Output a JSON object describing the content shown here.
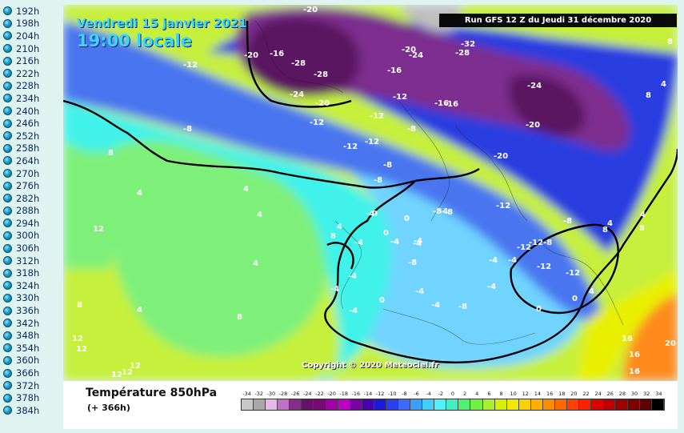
{
  "steps": [
    "192h",
    "198h",
    "204h",
    "210h",
    "216h",
    "222h",
    "228h",
    "234h",
    "240h",
    "246h",
    "252h",
    "258h",
    "264h",
    "270h",
    "276h",
    "282h",
    "288h",
    "294h",
    "300h",
    "306h",
    "312h",
    "318h",
    "324h",
    "330h",
    "336h",
    "342h",
    "348h",
    "354h",
    "360h",
    "366h",
    "372h",
    "378h",
    "384h"
  ],
  "map": {
    "date": "Vendredi 15 janvier 2021",
    "time": "19:00 locale",
    "run": "Run GFS 12 Z du Jeudi 31 décembre 2020",
    "copyright": "Copyright © 2020 Meteociel.fr",
    "colors": {
      "very_cold": "#5a1260",
      "cold": "#7d2d8f",
      "blue": "#2b3de0",
      "mid_blue": "#4876f0",
      "light_blue": "#6fd4ff",
      "cyan": "#3ff2ea",
      "green": "#7ef07a",
      "yellow_green": "#c6f03a",
      "orange": "#ff8a1a"
    },
    "labels": [
      "-20",
      "-16",
      "-28",
      "-28",
      "-24",
      "-20",
      "-12",
      "-20",
      "-16",
      "-20",
      "-24",
      "-12",
      "-16",
      "-16",
      "-12",
      "-8",
      "-12",
      "-12",
      "-12",
      "-8",
      "-32",
      "-28",
      "-20",
      "-24",
      "-20",
      "-8",
      "-8",
      "-4",
      "-8",
      "-4",
      "-4",
      "-4",
      "-8",
      "-4",
      "-12",
      "-12",
      "-12-8",
      "-12",
      "-8",
      "-4",
      "-12",
      "-8",
      "-4",
      "-8",
      "-4",
      "0",
      "0",
      "-4",
      "-4",
      "-4",
      "-4",
      "0",
      "-4",
      "-4",
      "4",
      "4",
      "4",
      "4",
      "4",
      "4",
      "4",
      "4",
      "8",
      "8",
      "8",
      "8",
      "8",
      "12",
      "12",
      "12",
      "12",
      "12",
      "12",
      "12",
      "16",
      "16",
      "20",
      "16",
      "4",
      "8",
      "8",
      "8",
      "0",
      "0",
      "0",
      "4",
      "-4",
      "0"
    ]
  },
  "legend": {
    "title": "Température 850hPa",
    "subtitle": "(+ 366h)",
    "scale_values": [
      "-34",
      "-32",
      "-30",
      "-28",
      "-26",
      "-24",
      "-22",
      "-20",
      "-18",
      "-16",
      "-14",
      "-12",
      "-10",
      "-8",
      "-6",
      "-4",
      "-2",
      "0",
      "2",
      "4",
      "6",
      "8",
      "10",
      "12",
      "14",
      "16",
      "18",
      "20",
      "22",
      "24",
      "26",
      "28",
      "30",
      "32",
      "34"
    ],
    "scale_colors": [
      "#c8c8c8",
      "#a8a8a8",
      "#e8b8e8",
      "#c070c8",
      "#8a2a8a",
      "#6a1068",
      "#780a78",
      "#a000a8",
      "#c000c8",
      "#7a00a8",
      "#4a00b0",
      "#1a1ad8",
      "#2a40f0",
      "#3a6aff",
      "#3aa0ff",
      "#40d0ff",
      "#50f0ff",
      "#40f0c0",
      "#50f070",
      "#70f040",
      "#a8f030",
      "#d8f000",
      "#f0e800",
      "#ffd000",
      "#ffb000",
      "#ff8c00",
      "#ff6800",
      "#ff4000",
      "#ff2000",
      "#e00000",
      "#c00000",
      "#a00000",
      "#800000",
      "#600000",
      "#000000"
    ]
  }
}
